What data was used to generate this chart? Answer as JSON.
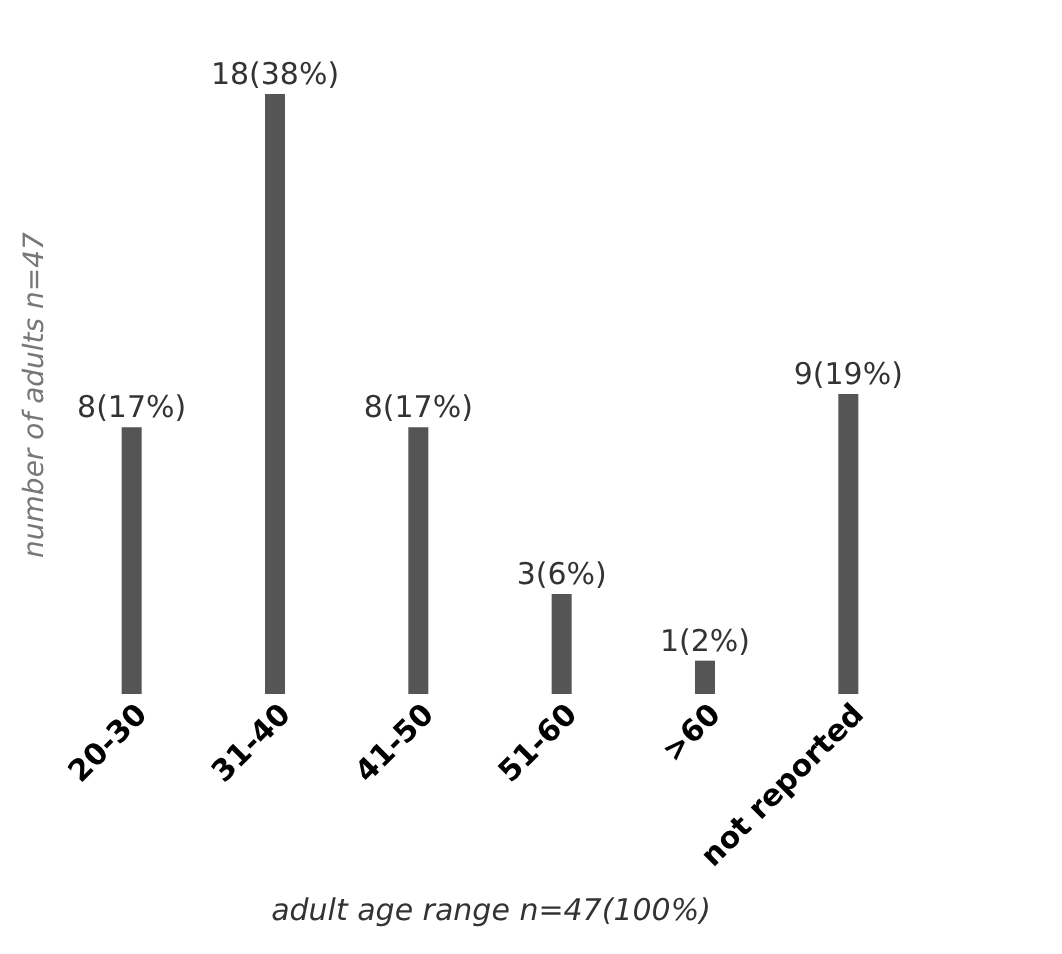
{
  "chart_data": {
    "type": "bar",
    "xlabel": "adult age range n=47(100%)",
    "ylabel": "number of adults n=47",
    "categories": [
      "20-30",
      "31-40",
      "41-50",
      "51-60",
      ">60",
      "not reported"
    ],
    "values": [
      8,
      18,
      8,
      3,
      1,
      9
    ],
    "value_labels": [
      "8(17%)",
      "18(38%)",
      "8(17%)",
      "3(6%)",
      "1(2%)",
      "9(19%)"
    ],
    "color": "#555555",
    "grid": false,
    "tick_labels": "x"
  }
}
